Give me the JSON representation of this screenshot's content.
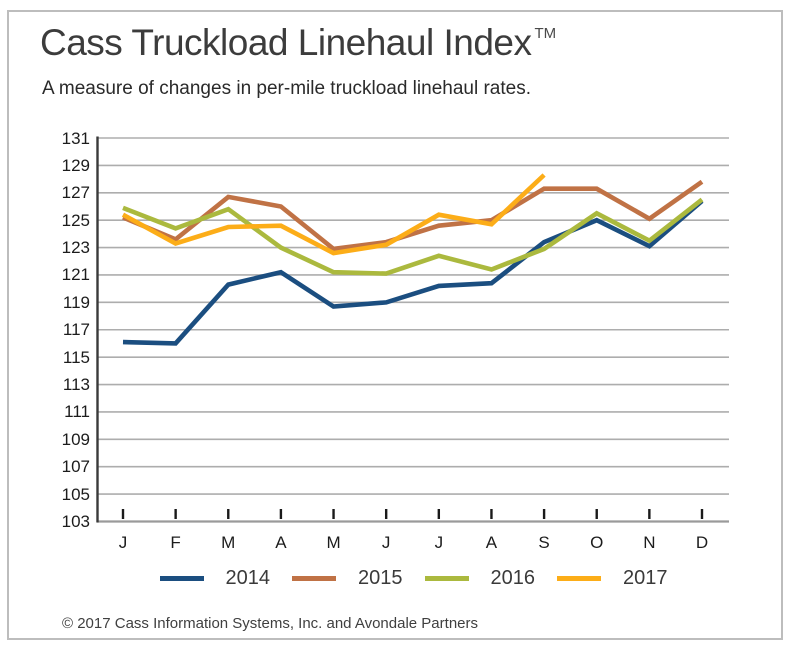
{
  "header": {
    "title": "Cass Truckload Linehaul Index",
    "trademark": "TM",
    "subtitle": "A measure of changes in per-mile truckload linehaul rates."
  },
  "chart_data": {
    "type": "line",
    "title": "Cass Truckload Linehaul Index",
    "x_categories": [
      "J",
      "F",
      "M",
      "A",
      "M",
      "J",
      "J",
      "A",
      "S",
      "O",
      "N",
      "D"
    ],
    "ylim": [
      103,
      131
    ],
    "ytick_step": 2,
    "yticks": [
      131,
      129,
      127,
      125,
      123,
      121,
      119,
      117,
      115,
      113,
      111,
      109,
      107,
      105,
      103
    ],
    "grid": true,
    "legend_position": "bottom",
    "series": [
      {
        "name": "2014",
        "color": "#1B4E80",
        "values": [
          116.1,
          116.0,
          120.3,
          121.2,
          118.7,
          119.0,
          120.2,
          120.4,
          123.4,
          125.0,
          123.1,
          126.4
        ]
      },
      {
        "name": "2015",
        "color": "#C07245",
        "values": [
          125.2,
          123.6,
          126.7,
          126.0,
          122.9,
          123.4,
          124.6,
          125.0,
          127.3,
          127.3,
          125.1,
          127.8
        ]
      },
      {
        "name": "2016",
        "color": "#ABB93E",
        "values": [
          125.9,
          124.4,
          125.8,
          123.0,
          121.2,
          121.1,
          122.4,
          121.4,
          122.9,
          125.5,
          123.5,
          126.5
        ]
      },
      {
        "name": "2017",
        "color": "#FCAD18",
        "values": [
          125.4,
          123.3,
          124.5,
          124.6,
          122.6,
          123.2,
          125.4,
          124.7,
          128.3
        ]
      }
    ],
    "colors": {
      "gridline": "#ADADAD",
      "x_axis": "#9A9A9A",
      "y_axis": "#3A3A3A",
      "tick": "#1A1A1A"
    }
  },
  "footer": {
    "copyright": "© 2017 Cass Information Systems, Inc. and Avondale Partners"
  }
}
